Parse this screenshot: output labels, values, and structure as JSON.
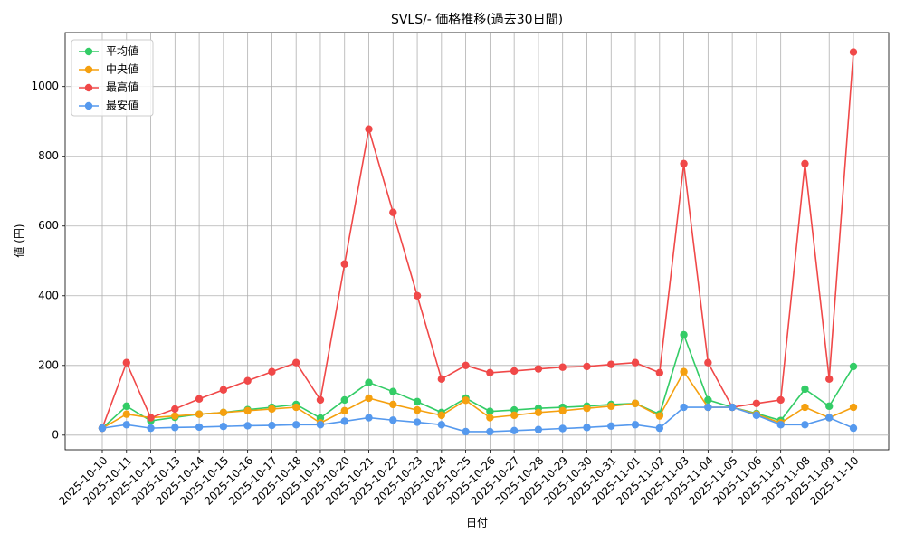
{
  "chart_data": {
    "type": "line",
    "title": "SVLS/- 価格推移(過去30日間)",
    "x_label": "日付",
    "y_label": "値 (円)",
    "categories": [
      "2025-10-10",
      "2025-10-11",
      "2025-10-12",
      "2025-10-13",
      "2025-10-14",
      "2025-10-15",
      "2025-10-16",
      "2025-10-17",
      "2025-10-18",
      "2025-10-19",
      "2025-10-20",
      "2025-10-21",
      "2025-10-22",
      "2025-10-23",
      "2025-10-24",
      "2025-10-25",
      "2025-10-26",
      "2025-10-27",
      "2025-10-28",
      "2025-10-29",
      "2025-10-30",
      "2025-10-31",
      "2025-11-01",
      "2025-11-02",
      "2025-11-03",
      "2025-11-04",
      "2025-11-05",
      "2025-11-06",
      "2025-11-07",
      "2025-11-08",
      "2025-11-09",
      "2025-11-10"
    ],
    "series": [
      {
        "name": "平均値",
        "color": "#33cc66",
        "values": [
          20,
          83,
          41,
          51,
          60,
          65,
          73,
          80,
          88,
          49,
          101,
          151,
          125,
          96,
          65,
          106,
          68,
          72,
          77,
          80,
          83,
          88,
          91,
          60,
          288,
          101,
          80,
          62,
          42,
          132,
          83,
          197
        ]
      },
      {
        "name": "中央値",
        "color": "#f5a00f",
        "values": [
          20,
          60,
          50,
          55,
          60,
          65,
          70,
          75,
          80,
          35,
          70,
          106,
          88,
          72,
          57,
          100,
          50,
          57,
          65,
          70,
          77,
          83,
          91,
          55,
          182,
          80,
          80,
          60,
          35,
          80,
          50,
          80
        ]
      },
      {
        "name": "最高値",
        "color": "#f04848",
        "values": [
          20,
          208,
          50,
          75,
          104,
          130,
          156,
          182,
          208,
          101,
          491,
          878,
          639,
          400,
          161,
          200,
          179,
          184,
          190,
          195,
          197,
          203,
          208,
          179,
          779,
          208,
          80,
          91,
          101,
          779,
          161,
          1099
        ]
      },
      {
        "name": "最安値",
        "color": "#5599ee",
        "values": [
          20,
          30,
          20,
          22,
          23,
          25,
          27,
          28,
          30,
          30,
          40,
          50,
          43,
          37,
          30,
          10,
          10,
          13,
          16,
          19,
          22,
          26,
          30,
          20,
          80,
          80,
          80,
          57,
          30,
          30,
          50,
          20
        ]
      }
    ],
    "ylim": [
      -42,
      1155
    ],
    "yticks": [
      0,
      200,
      400,
      600,
      800,
      1000
    ],
    "grid": true,
    "legend": "upper left"
  }
}
